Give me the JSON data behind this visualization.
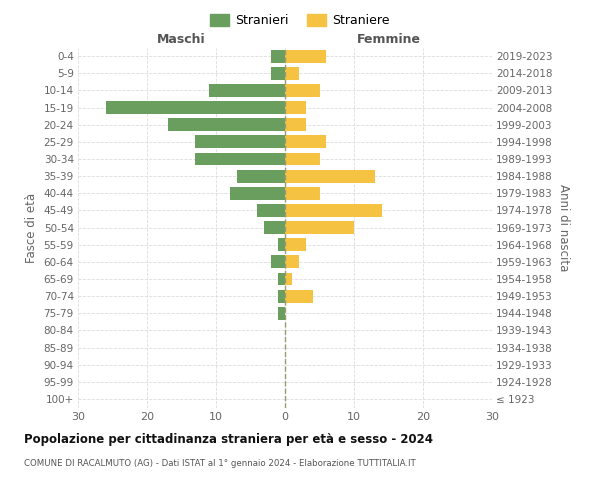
{
  "age_groups": [
    "100+",
    "95-99",
    "90-94",
    "85-89",
    "80-84",
    "75-79",
    "70-74",
    "65-69",
    "60-64",
    "55-59",
    "50-54",
    "45-49",
    "40-44",
    "35-39",
    "30-34",
    "25-29",
    "20-24",
    "15-19",
    "10-14",
    "5-9",
    "0-4"
  ],
  "birth_years": [
    "≤ 1923",
    "1924-1928",
    "1929-1933",
    "1934-1938",
    "1939-1943",
    "1944-1948",
    "1949-1953",
    "1954-1958",
    "1959-1963",
    "1964-1968",
    "1969-1973",
    "1974-1978",
    "1979-1983",
    "1984-1988",
    "1989-1993",
    "1994-1998",
    "1999-2003",
    "2004-2008",
    "2009-2013",
    "2014-2018",
    "2019-2023"
  ],
  "maschi": [
    0,
    0,
    0,
    0,
    0,
    1,
    1,
    1,
    2,
    1,
    3,
    4,
    8,
    7,
    13,
    13,
    17,
    26,
    11,
    2,
    2
  ],
  "femmine": [
    0,
    0,
    0,
    0,
    0,
    0,
    4,
    1,
    2,
    3,
    10,
    14,
    5,
    13,
    5,
    6,
    3,
    3,
    5,
    2,
    6
  ],
  "maschi_color": "#6a9e5f",
  "femmine_color": "#f5c242",
  "title": "Popolazione per cittadinanza straniera per età e sesso - 2024",
  "subtitle": "COMUNE DI RACALMUTO (AG) - Dati ISTAT al 1° gennaio 2024 - Elaborazione TUTTITALIA.IT",
  "header_left": "Maschi",
  "header_right": "Femmine",
  "ylabel_left": "Fasce di età",
  "ylabel_right": "Anni di nascita",
  "legend_maschi": "Stranieri",
  "legend_femmine": "Straniere",
  "xlim": 30,
  "grid_color": "#dddddd"
}
